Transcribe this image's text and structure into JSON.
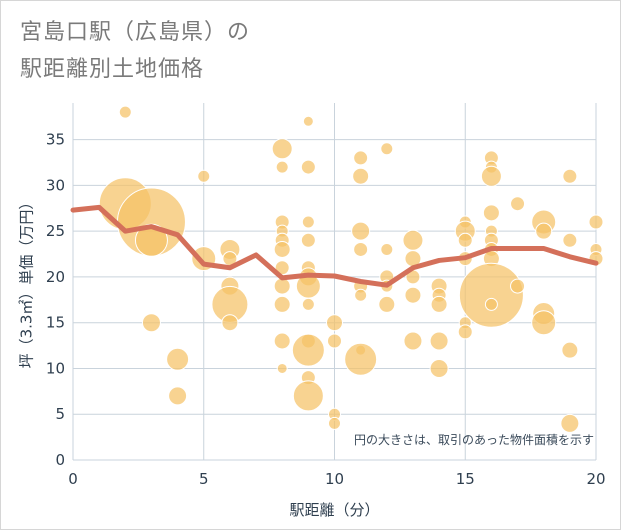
{
  "title_line1": "宮島口駅（広島県）の",
  "title_line2": "駅距離別土地価格",
  "chart_data": {
    "type": "scatter",
    "xlabel": "駅距離（分）",
    "ylabel": "坪（3.3㎡）単価（万円）",
    "xlim": [
      0,
      20
    ],
    "ylim": [
      0,
      39
    ],
    "xticks": [
      0,
      5,
      10,
      15,
      20
    ],
    "yticks": [
      0,
      5,
      10,
      15,
      20,
      25,
      30,
      35
    ],
    "note": "円の大きさは、取引のあった物件面積を示す",
    "colors": {
      "bubble": "#f5c266",
      "bubble_edge": "#ffffff",
      "line": "#d4705a",
      "grid": "#c9d3dc",
      "plot_bg": "#ffffff"
    },
    "points": [
      {
        "x": 2,
        "y": 38,
        "s": 6
      },
      {
        "x": 2,
        "y": 28,
        "s": 26
      },
      {
        "x": 3,
        "y": 26,
        "s": 34
      },
      {
        "x": 3,
        "y": 24,
        "s": 16
      },
      {
        "x": 3,
        "y": 15,
        "s": 9
      },
      {
        "x": 4,
        "y": 11,
        "s": 11
      },
      {
        "x": 4,
        "y": 7,
        "s": 9
      },
      {
        "x": 5,
        "y": 31,
        "s": 6
      },
      {
        "x": 5,
        "y": 22,
        "s": 12
      },
      {
        "x": 6,
        "y": 23,
        "s": 10
      },
      {
        "x": 6,
        "y": 22,
        "s": 7
      },
      {
        "x": 6,
        "y": 19,
        "s": 9
      },
      {
        "x": 6,
        "y": 17,
        "s": 18
      },
      {
        "x": 6,
        "y": 15,
        "s": 8
      },
      {
        "x": 8,
        "y": 34,
        "s": 10
      },
      {
        "x": 8,
        "y": 32,
        "s": 6
      },
      {
        "x": 8,
        "y": 26,
        "s": 7
      },
      {
        "x": 8,
        "y": 25,
        "s": 6
      },
      {
        "x": 8,
        "y": 24,
        "s": 7
      },
      {
        "x": 8,
        "y": 23,
        "s": 8
      },
      {
        "x": 8,
        "y": 21,
        "s": 7
      },
      {
        "x": 8,
        "y": 19,
        "s": 8
      },
      {
        "x": 8,
        "y": 17,
        "s": 8
      },
      {
        "x": 8,
        "y": 13,
        "s": 8
      },
      {
        "x": 8,
        "y": 10,
        "s": 5
      },
      {
        "x": 9,
        "y": 37,
        "s": 5
      },
      {
        "x": 9,
        "y": 32,
        "s": 7
      },
      {
        "x": 9,
        "y": 26,
        "s": 6
      },
      {
        "x": 9,
        "y": 24,
        "s": 7
      },
      {
        "x": 9,
        "y": 21,
        "s": 7
      },
      {
        "x": 9,
        "y": 20,
        "s": 9
      },
      {
        "x": 9,
        "y": 19,
        "s": 12
      },
      {
        "x": 9,
        "y": 17,
        "s": 6
      },
      {
        "x": 9,
        "y": 13,
        "s": 7
      },
      {
        "x": 9,
        "y": 12,
        "s": 16
      },
      {
        "x": 9,
        "y": 9,
        "s": 7
      },
      {
        "x": 9,
        "y": 7,
        "s": 15
      },
      {
        "x": 10,
        "y": 15,
        "s": 8
      },
      {
        "x": 10,
        "y": 13,
        "s": 7
      },
      {
        "x": 10,
        "y": 5,
        "s": 6
      },
      {
        "x": 10,
        "y": 4,
        "s": 6
      },
      {
        "x": 11,
        "y": 33,
        "s": 7
      },
      {
        "x": 11,
        "y": 31,
        "s": 8
      },
      {
        "x": 11,
        "y": 25,
        "s": 9
      },
      {
        "x": 11,
        "y": 23,
        "s": 7
      },
      {
        "x": 11,
        "y": 19,
        "s": 7
      },
      {
        "x": 11,
        "y": 18,
        "s": 6
      },
      {
        "x": 11,
        "y": 12,
        "s": 5
      },
      {
        "x": 11,
        "y": 11,
        "s": 16
      },
      {
        "x": 12,
        "y": 34,
        "s": 6
      },
      {
        "x": 12,
        "y": 23,
        "s": 6
      },
      {
        "x": 12,
        "y": 20,
        "s": 7
      },
      {
        "x": 12,
        "y": 19,
        "s": 6
      },
      {
        "x": 12,
        "y": 17,
        "s": 8
      },
      {
        "x": 13,
        "y": 24,
        "s": 10
      },
      {
        "x": 13,
        "y": 22,
        "s": 8
      },
      {
        "x": 13,
        "y": 20,
        "s": 7
      },
      {
        "x": 13,
        "y": 18,
        "s": 8
      },
      {
        "x": 13,
        "y": 13,
        "s": 9
      },
      {
        "x": 14,
        "y": 19,
        "s": 8
      },
      {
        "x": 14,
        "y": 18,
        "s": 7
      },
      {
        "x": 14,
        "y": 17,
        "s": 8
      },
      {
        "x": 14,
        "y": 13,
        "s": 9
      },
      {
        "x": 14,
        "y": 10,
        "s": 9
      },
      {
        "x": 15,
        "y": 26,
        "s": 6
      },
      {
        "x": 15,
        "y": 25,
        "s": 10
      },
      {
        "x": 15,
        "y": 24,
        "s": 7
      },
      {
        "x": 15,
        "y": 22,
        "s": 7
      },
      {
        "x": 15,
        "y": 15,
        "s": 6
      },
      {
        "x": 15,
        "y": 14,
        "s": 7
      },
      {
        "x": 16,
        "y": 33,
        "s": 7
      },
      {
        "x": 16,
        "y": 32,
        "s": 6
      },
      {
        "x": 16,
        "y": 31,
        "s": 10
      },
      {
        "x": 16,
        "y": 27,
        "s": 8
      },
      {
        "x": 16,
        "y": 25,
        "s": 6
      },
      {
        "x": 16,
        "y": 24,
        "s": 7
      },
      {
        "x": 16,
        "y": 23,
        "s": 7
      },
      {
        "x": 16,
        "y": 22,
        "s": 8
      },
      {
        "x": 16,
        "y": 18,
        "s": 32
      },
      {
        "x": 16,
        "y": 17,
        "s": 6
      },
      {
        "x": 17,
        "y": 28,
        "s": 7
      },
      {
        "x": 17,
        "y": 19,
        "s": 7
      },
      {
        "x": 18,
        "y": 26,
        "s": 12
      },
      {
        "x": 18,
        "y": 25,
        "s": 8
      },
      {
        "x": 18,
        "y": 16,
        "s": 11
      },
      {
        "x": 18,
        "y": 15,
        "s": 12
      },
      {
        "x": 19,
        "y": 31,
        "s": 7
      },
      {
        "x": 19,
        "y": 24,
        "s": 7
      },
      {
        "x": 19,
        "y": 12,
        "s": 8
      },
      {
        "x": 19,
        "y": 4,
        "s": 9
      },
      {
        "x": 20,
        "y": 26,
        "s": 7
      },
      {
        "x": 20,
        "y": 23,
        "s": 6
      },
      {
        "x": 20,
        "y": 22,
        "s": 7
      }
    ],
    "trend": [
      {
        "x": 0,
        "y": 27.3
      },
      {
        "x": 1,
        "y": 27.6
      },
      {
        "x": 2,
        "y": 25
      },
      {
        "x": 3,
        "y": 25.5
      },
      {
        "x": 4,
        "y": 24.6
      },
      {
        "x": 5,
        "y": 21.4
      },
      {
        "x": 6,
        "y": 21
      },
      {
        "x": 7,
        "y": 22.4
      },
      {
        "x": 8,
        "y": 19.9
      },
      {
        "x": 9,
        "y": 20.2
      },
      {
        "x": 10,
        "y": 20.1
      },
      {
        "x": 11,
        "y": 19.5
      },
      {
        "x": 12,
        "y": 19.1
      },
      {
        "x": 13,
        "y": 21
      },
      {
        "x": 14,
        "y": 21.8
      },
      {
        "x": 15,
        "y": 22.1
      },
      {
        "x": 16,
        "y": 23.1
      },
      {
        "x": 17,
        "y": 23.1
      },
      {
        "x": 18,
        "y": 23.1
      },
      {
        "x": 19,
        "y": 22.2
      },
      {
        "x": 20,
        "y": 21.5
      }
    ]
  }
}
